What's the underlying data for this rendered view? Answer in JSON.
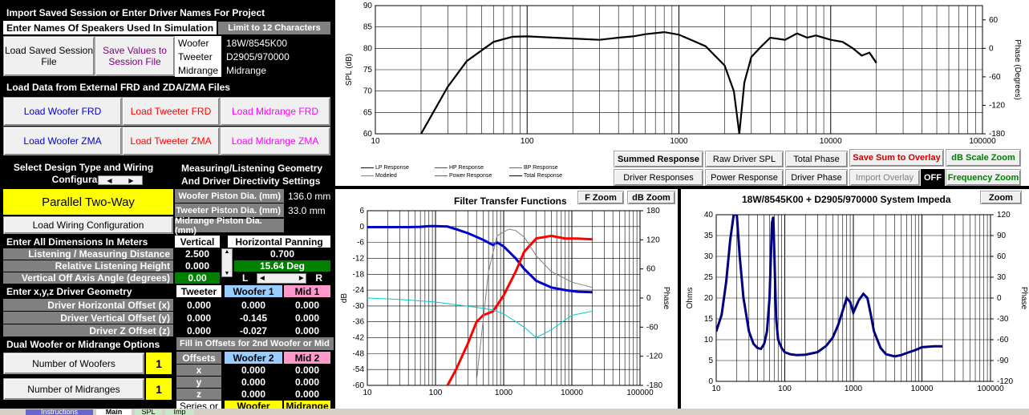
{
  "left": {
    "import_header": "Import Saved Session or Enter Driver Names For Project",
    "enter_names_header": "Enter Names Of Speakers Used In Simulation",
    "limit_badge": "Limit to 12 Characters",
    "load_saved_btn": "Load Saved Session File",
    "save_values_btn": "Save Values to Session File",
    "woofer_label": "Woofer",
    "woofer_name": "18W/8545K00",
    "tweeter_label": "Tweeter",
    "tweeter_name": "D2905/970000",
    "midrange_label": "Midrange",
    "midrange_name": "Midrange",
    "load_data_header": "Load Data from External FRD and ZDA/ZMA Files",
    "load_woofer_frd": "Load Woofer FRD",
    "load_tweeter_frd": "Load Tweeter FRD",
    "load_midrange_frd": "Load Midrange FRD",
    "load_woofer_zma": "Load Woofer ZMA",
    "load_tweeter_zma": "Load Tweeter ZMA",
    "load_midrange_zma": "Load Midrange ZMA",
    "design_type_header": "Select Design Type and Wiring Configuration",
    "measuring_header": "Measuring/Listening Geometry And Driver Directivity Settings",
    "design_type_value": "Parallel Two-Way",
    "load_wiring_btn": "Load Wiring Configuration",
    "woofer_piston_label": "Woofer Piston Dia. (mm)",
    "woofer_piston_value": "136.0 mm",
    "tweeter_piston_label": "Tweeter Piston Dia. (mm)",
    "tweeter_piston_value": "33.0 mm",
    "midrange_piston_label": "Midrange Piston Dia. (mm)",
    "dims_header": "Enter All Dimensions In Meters",
    "vertical_label": "Vertical",
    "horizontal_panning_label": "Horizontal Panning",
    "listening_distance_label": "Listening / Measuring  Distance",
    "listening_distance_value": "2.500",
    "horizontal_value": "0.700",
    "listening_height_label": "Relative Listening Height",
    "listening_height_value": "0.000",
    "horizontal_deg": "15.64 Deg",
    "vertical_angle_label": "Vertical Off Axis Angle (degrees)",
    "vertical_angle_value": "0.00",
    "l_label": "L",
    "r_label": "R",
    "xyz_header": "Enter x,y,z Driver Geometry",
    "col_tweeter": "Tweeter",
    "col_woofer1": "Woofer 1",
    "col_mid1": "Mid 1",
    "offset_x_label": "Driver Horizontal Offset (x)",
    "offset_y_label": "Driver Vertical Offset (y)",
    "offset_z_label": "Driver Z Offset (z)",
    "offsets_x": [
      "0.000",
      "0.000",
      "0.000"
    ],
    "offsets_y": [
      "0.000",
      "-0.145",
      "0.000"
    ],
    "offsets_z": [
      "0.000",
      "-0.027",
      "0.000"
    ],
    "dual_header": "Dual Woofer or Midrange Options",
    "fill_header": "Fill in Offsets for 2nd Woofer or Mid",
    "num_woofers_label": "Number of Woofers",
    "num_woofers_value": "1",
    "num_mids_label": "Number of Midranges",
    "num_mids_value": "1",
    "offsets_col": "Offsets",
    "woofer2_col": "Woofer 2",
    "mid2_col": "Mid 2",
    "axis_x": "x",
    "axis_y": "y",
    "axis_z": "z",
    "second_x": [
      "0.000",
      "0.000"
    ],
    "second_y": [
      "0.000",
      "0.000"
    ],
    "second_z": [
      "0.000",
      "0.000"
    ],
    "series_or": "Series or",
    "woofer_col": "Woofer",
    "midrange_col": "Midrange"
  },
  "top_chart": {
    "legend": [
      "LP Response",
      "HP Response",
      "BP Response",
      "Modeled",
      "Power Response",
      "Total Response"
    ],
    "buttons_row1": [
      "Summed Response",
      "Raw Driver SPL",
      "Total Phase",
      "Save Sum to Overlay",
      "dB Scale Zoom"
    ],
    "buttons_row2": [
      "Driver Responses",
      "Power Response",
      "Driver Phase",
      "Import Overlay",
      "OFF",
      "Frequency Zoom"
    ]
  },
  "filter_chart": {
    "title": "Filter Transfer Functions",
    "f_zoom": "F Zoom",
    "db_zoom": "dB Zoom"
  },
  "imp_chart": {
    "title": "18W/8545K00 + D2905/970000   System Impeda",
    "zoom": "Zoom"
  },
  "tabs": [
    "Instructions",
    "Main",
    "SPL",
    "Imp"
  ],
  "colors": {
    "woofer": "#0000cc",
    "tweeter": "#ff0000",
    "midrange": "#ff00ff",
    "green": "#008000",
    "yellow": "#ffff00",
    "blue_head": "#99ccff",
    "pink_head": "#ff99cc"
  },
  "chart_data": [
    {
      "type": "line",
      "xscale": "log",
      "xlim": [
        10,
        100000
      ],
      "ylim": [
        60,
        90
      ],
      "ylabel": "SPL (dB)",
      "y2label": "Phase (Degrees)",
      "y2lim": [
        -180,
        90
      ],
      "yticks": [
        60,
        65,
        70,
        75,
        80,
        85,
        90
      ],
      "y2ticks": [
        -180,
        -120,
        -60,
        0,
        60
      ],
      "xticks": [
        10,
        100,
        1000,
        10000,
        100000
      ],
      "series": [
        {
          "x": [
            20,
            30,
            40,
            60,
            80,
            100,
            150,
            200,
            300,
            400,
            500,
            600,
            800,
            1000,
            1200,
            1500,
            2000,
            2300,
            2500,
            2700,
            3000,
            3500,
            4000,
            5000,
            6000,
            7000,
            8000,
            10000,
            12000,
            14000,
            16000,
            18000,
            20000
          ],
          "values": [
            60,
            71,
            77,
            81.5,
            82.7,
            82.8,
            82.5,
            82.3,
            82,
            82.5,
            82.8,
            83.3,
            83.8,
            83.2,
            82,
            80.5,
            76,
            70,
            60,
            72,
            78,
            80.5,
            82.5,
            82,
            83.5,
            82.5,
            83,
            82,
            81.5,
            80,
            78.3,
            79,
            76.6
          ]
        }
      ]
    },
    {
      "type": "line",
      "xscale": "log",
      "xlim": [
        10,
        100000
      ],
      "ylim": [
        -60,
        6
      ],
      "ylabel": "dB",
      "y2label": "Phase",
      "y2lim": [
        -180,
        180
      ],
      "yticks": [
        -60,
        -54,
        -48,
        -42,
        -36,
        -30,
        -24,
        -18,
        -12,
        -6,
        0,
        6
      ],
      "y2ticks": [
        -180,
        -120,
        -60,
        0,
        60,
        120,
        180
      ],
      "xticks": [
        10,
        100,
        1000,
        10000,
        100000
      ],
      "series": [
        {
          "color": "#0000cc",
          "x": [
            10,
            20,
            40,
            60,
            80,
            100,
            150,
            200,
            300,
            500,
            700,
            800,
            1000,
            1500,
            2000,
            3000,
            5000,
            8000,
            12000,
            20000
          ],
          "values": [
            -0.2,
            -0.2,
            -0.2,
            -0.1,
            0.2,
            0.2,
            0,
            -1,
            -2.5,
            -5,
            -7,
            -6,
            -7.5,
            -12,
            -16,
            -20.5,
            -23,
            -24,
            -24.6,
            -24.8
          ]
        },
        {
          "color": "#ff0000",
          "x": [
            150,
            200,
            300,
            400,
            500,
            700,
            1000,
            1500,
            2000,
            3000,
            5000,
            8000,
            12000,
            20000
          ],
          "values": [
            -60,
            -54,
            -44,
            -36,
            -33.5,
            -32,
            -26,
            -17,
            -9.5,
            -4.5,
            -3.5,
            -4.5,
            -4.5,
            -4.8
          ]
        },
        {
          "color": "#00cccc",
          "x": [
            10,
            30,
            100,
            200,
            400,
            700,
            1000,
            2000,
            3000,
            5000,
            10000,
            20000
          ],
          "values": [
            -27,
            -27.5,
            -28.5,
            -29.5,
            -30.5,
            -31.5,
            -33,
            -38,
            -42,
            -39,
            -33.5,
            -32
          ]
        },
        {
          "color": "#808080",
          "x": [
            400,
            600,
            800,
            1000,
            1200,
            1500,
            2000,
            3000,
            5000,
            10000,
            20000
          ],
          "values": [
            -58,
            -17,
            -3.5,
            -2,
            -1,
            -1.5,
            -4,
            -11,
            -17,
            -21,
            -23
          ]
        }
      ]
    },
    {
      "type": "line",
      "xscale": "log",
      "xlim": [
        10,
        100000
      ],
      "ylim": [
        0,
        40
      ],
      "ylabel": "Ohms",
      "y2label": "Phase",
      "y2lim": [
        -120,
        120
      ],
      "yticks": [
        0,
        5,
        10,
        15,
        20,
        25,
        30,
        35,
        40
      ],
      "y2ticks": [
        -120,
        -90,
        -60,
        -30,
        0,
        30,
        60,
        90,
        120
      ],
      "xticks": [
        10,
        100,
        1000,
        10000,
        100000
      ],
      "series": [
        {
          "color": "#000080",
          "x": [
            10,
            12,
            14,
            16,
            18,
            20,
            22,
            25,
            30,
            35,
            40,
            45,
            50,
            55,
            60,
            65,
            68,
            72,
            75,
            80,
            90,
            100,
            120,
            150,
            200,
            300,
            400,
            500,
            600,
            700,
            800,
            900,
            1000,
            1200,
            1400,
            1600,
            1800,
            2000,
            2500,
            3000,
            4000,
            5000,
            6000,
            8000,
            10000,
            15000,
            20000
          ],
          "values": [
            12,
            16,
            24,
            34,
            40,
            40,
            30,
            20,
            12,
            9,
            8,
            7.8,
            9,
            12,
            20,
            38,
            39.5,
            25,
            15,
            10,
            8,
            7,
            6.5,
            6.3,
            6.4,
            7,
            8.5,
            10.5,
            13.5,
            17,
            20,
            19,
            16.5,
            19.5,
            21,
            20,
            16,
            12,
            8,
            6.5,
            6,
            6.3,
            6.8,
            7.5,
            8.2,
            8.4,
            8.4
          ]
        }
      ]
    }
  ]
}
